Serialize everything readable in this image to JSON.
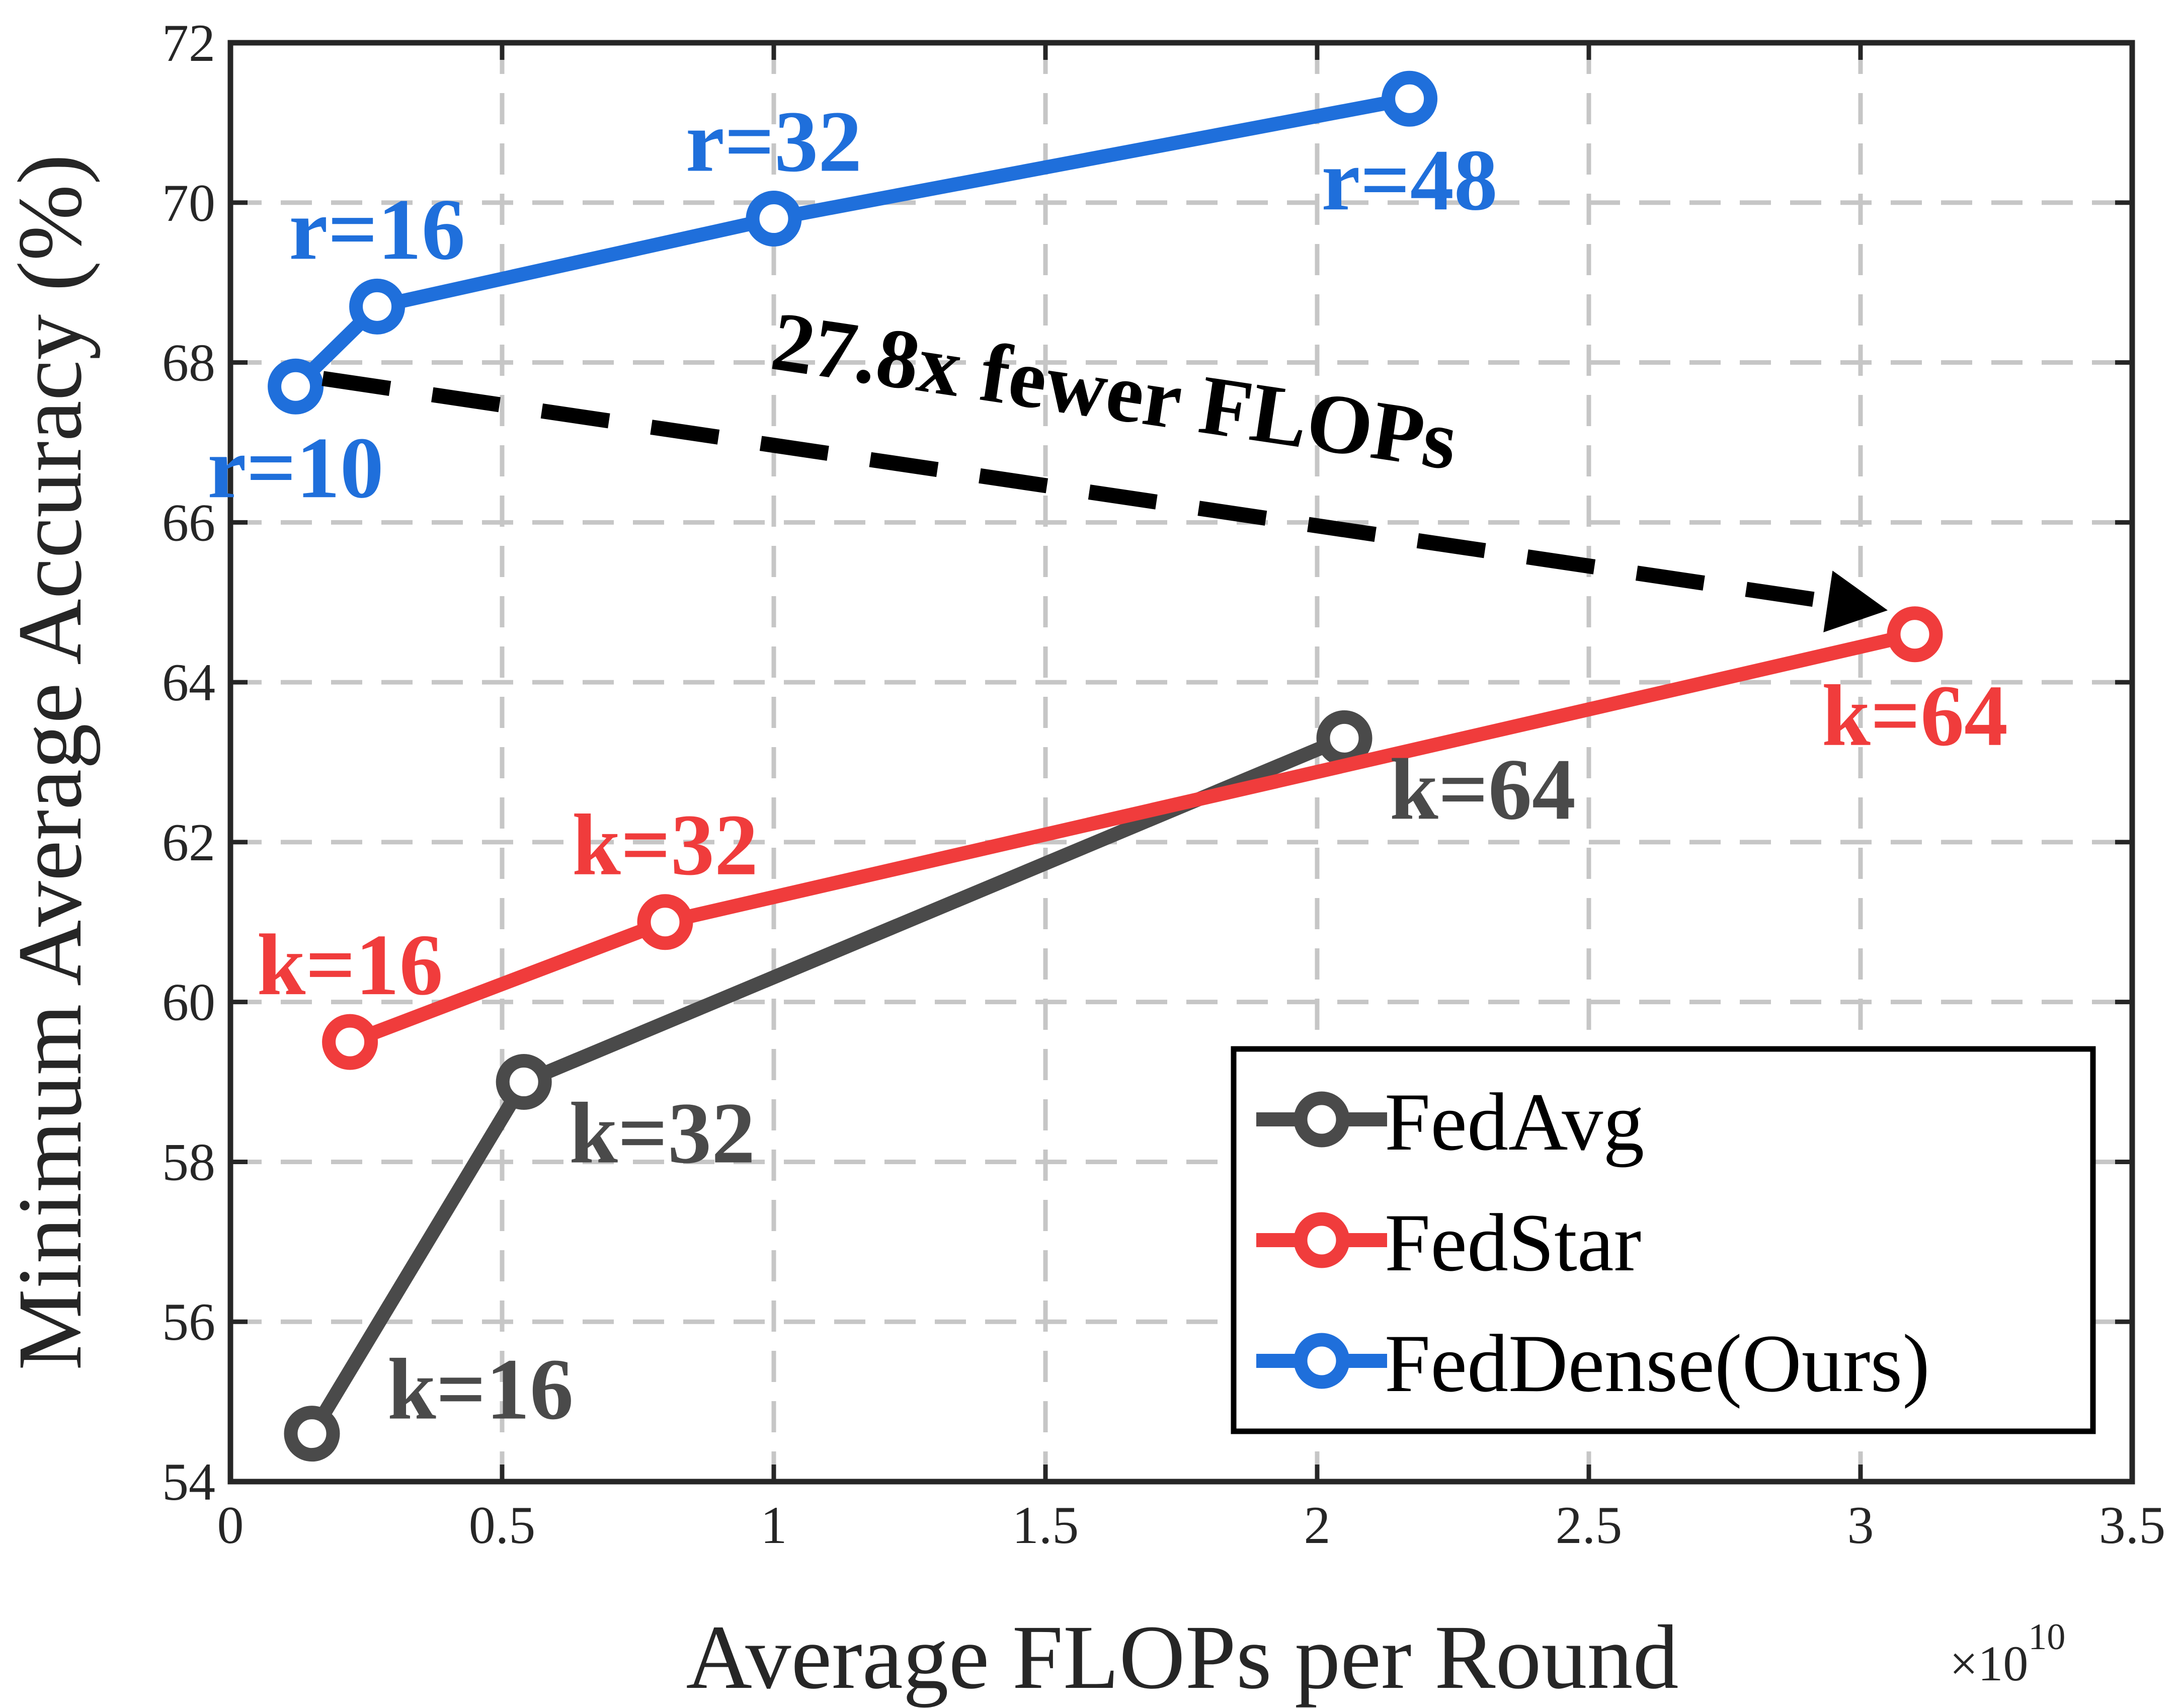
{
  "chart_data": {
    "type": "line",
    "xlabel": "Average FLOPs per Round",
    "ylabel": "Minimum Average Accuracy (%)",
    "x_exponent_label": "×10",
    "x_exponent_power": "10",
    "xlim": [
      0,
      3.5
    ],
    "ylim": [
      54,
      72
    ],
    "xticks": [
      0,
      0.5,
      1,
      1.5,
      2,
      2.5,
      3,
      3.5
    ],
    "xtick_labels": [
      "0",
      "0.5",
      "1",
      "1.5",
      "2",
      "2.5",
      "3",
      "3.5"
    ],
    "yticks": [
      54,
      56,
      58,
      60,
      62,
      64,
      66,
      68,
      70,
      72
    ],
    "ytick_labels": [
      "54",
      "56",
      "58",
      "60",
      "62",
      "64",
      "66",
      "68",
      "70",
      "72"
    ],
    "grid": true,
    "legend_position": "bottom-right",
    "series": [
      {
        "name": "FedAvg",
        "color": "#4a4a4a",
        "points": [
          {
            "x": 0.15,
            "y": 54.6,
            "label": "k=16",
            "label_pos": "right"
          },
          {
            "x": 0.54,
            "y": 59.0,
            "label": "k=32",
            "label_pos": "below-right"
          },
          {
            "x": 2.05,
            "y": 63.3,
            "label": "k=64",
            "label_pos": "below-right"
          }
        ]
      },
      {
        "name": "FedStar",
        "color": "#f03c3c",
        "points": [
          {
            "x": 0.22,
            "y": 59.5,
            "label": "k=16",
            "label_pos": "above"
          },
          {
            "x": 0.8,
            "y": 61.0,
            "label": "k=32",
            "label_pos": "above"
          },
          {
            "x": 3.1,
            "y": 64.6,
            "label": "k=64",
            "label_pos": "below"
          }
        ]
      },
      {
        "name": "FedDense(Ours)",
        "color": "#1f6fdb",
        "points": [
          {
            "x": 0.12,
            "y": 67.7,
            "label": "r=10",
            "label_pos": "below"
          },
          {
            "x": 0.27,
            "y": 68.7,
            "label": "r=16",
            "label_pos": "above"
          },
          {
            "x": 1.0,
            "y": 69.8,
            "label": "r=32",
            "label_pos": "above"
          },
          {
            "x": 2.17,
            "y": 71.3,
            "label": "r=48",
            "label_pos": "below"
          }
        ]
      }
    ],
    "annotation": {
      "text": "27.8x fewer FLOPs",
      "from": {
        "x": 0.17,
        "y": 67.8
      },
      "to": {
        "x": 3.05,
        "y": 64.9
      },
      "color": "#000000"
    }
  }
}
